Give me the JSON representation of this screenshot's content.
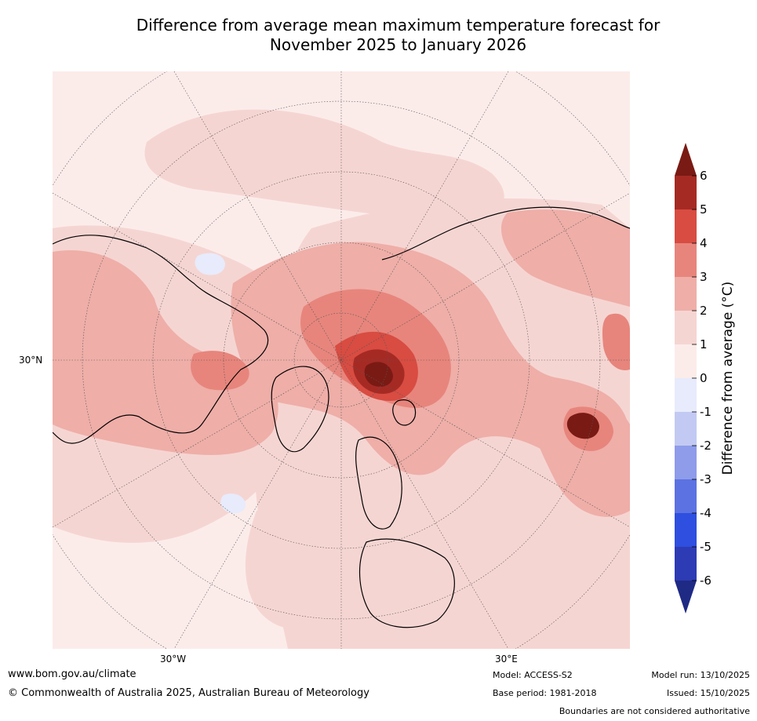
{
  "title": {
    "line1": "Difference from average mean maximum temperature forecast for",
    "line2": "November 2025 to January 2026"
  },
  "map": {
    "projection": "north-polar stereographic",
    "lat_label_left": "30°N",
    "lon_labels_bottom": [
      "30°W",
      "30°E"
    ]
  },
  "colorbar": {
    "title": "Difference from average (°C)",
    "ticks": [
      "6",
      "5",
      "4",
      "3",
      "2",
      "1",
      "0",
      "-1",
      "-2",
      "-3",
      "-4",
      "-5",
      "-6"
    ],
    "colors": [
      "#7a1a14",
      "#a62a24",
      "#d84c42",
      "#e7857c",
      "#efaea8",
      "#f5d5d2",
      "#fbecea",
      "#e7ebfb",
      "#c2caf3",
      "#8e9cea",
      "#5c72e2",
      "#2e4fdf",
      "#2d3bb4",
      "#1f2a85"
    ]
  },
  "footer": {
    "url": "www.bom.gov.au/climate",
    "copyright": "© Commonwealth of Australia 2025, Australian Bureau of Meteorology",
    "model": "Model: ACCESS-S2",
    "base_period": "Base period: 1981-2018",
    "model_run": "Model run: 13/10/2025",
    "issued": "Issued: 15/10/2025",
    "disclaimer": "Boundaries are not considered authoritative"
  }
}
